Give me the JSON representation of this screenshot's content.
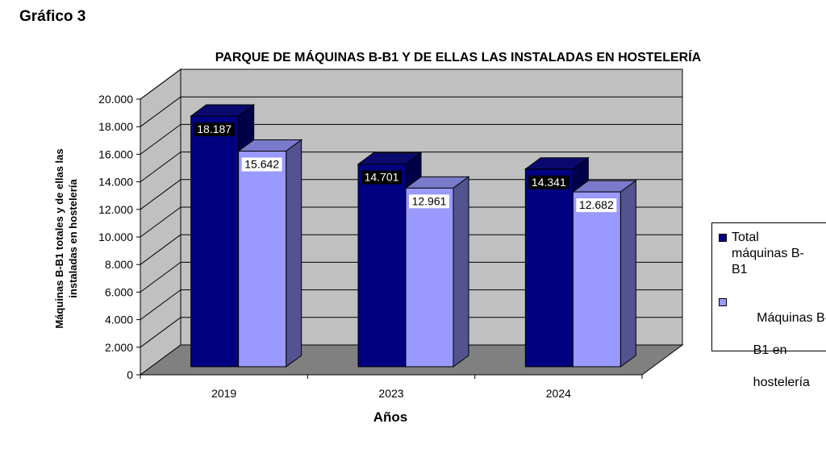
{
  "figure_label": "Gráfico 3",
  "colors": {
    "series1_front": "#000080",
    "series1_side": "#00004a",
    "series1_top": "#0a0a6e",
    "series2_front": "#9999ff",
    "series2_side": "#53538f",
    "series2_top": "#7a7acc",
    "wall": "#c0c0c0",
    "floor": "#808080"
  },
  "chart_data": {
    "type": "bar",
    "title": "PARQUE DE MÁQUINAS B-B1 Y DE ELLAS LAS INSTALADAS EN HOSTELERÍA",
    "xlabel": "Años",
    "ylabel_lines": [
      "Máquinas B-B1 totales y de ellas las",
      "instaladas en hostelería"
    ],
    "categories": [
      "2019",
      "2023",
      "2024"
    ],
    "series": [
      {
        "name": "Total máquinas B-B1",
        "values": [
          18187,
          14701,
          14341
        ],
        "labels": [
          "18.187",
          "14.701",
          "14.341"
        ]
      },
      {
        "name": "Máquinas B-B1 en hostelería",
        "values": [
          15642,
          12961,
          12682
        ],
        "labels": [
          "15.642",
          "12.961",
          "12.682"
        ]
      }
    ],
    "ylim": [
      0,
      20000
    ],
    "yticks": [
      0,
      2000,
      4000,
      6000,
      8000,
      10000,
      12000,
      14000,
      16000,
      18000,
      20000
    ],
    "ytick_labels": [
      "0",
      "2.000",
      "4.000",
      "6.000",
      "8.000",
      "10.000",
      "12.000",
      "14.000",
      "16.000",
      "18.000",
      "20.000"
    ],
    "grid": true,
    "legend_position": "right",
    "legend": [
      {
        "lines": [
          "Total",
          "máquinas B-",
          "B1"
        ]
      },
      {
        "lines": [
          " Máquinas B-",
          "B1 en",
          "hostelería"
        ]
      }
    ]
  }
}
